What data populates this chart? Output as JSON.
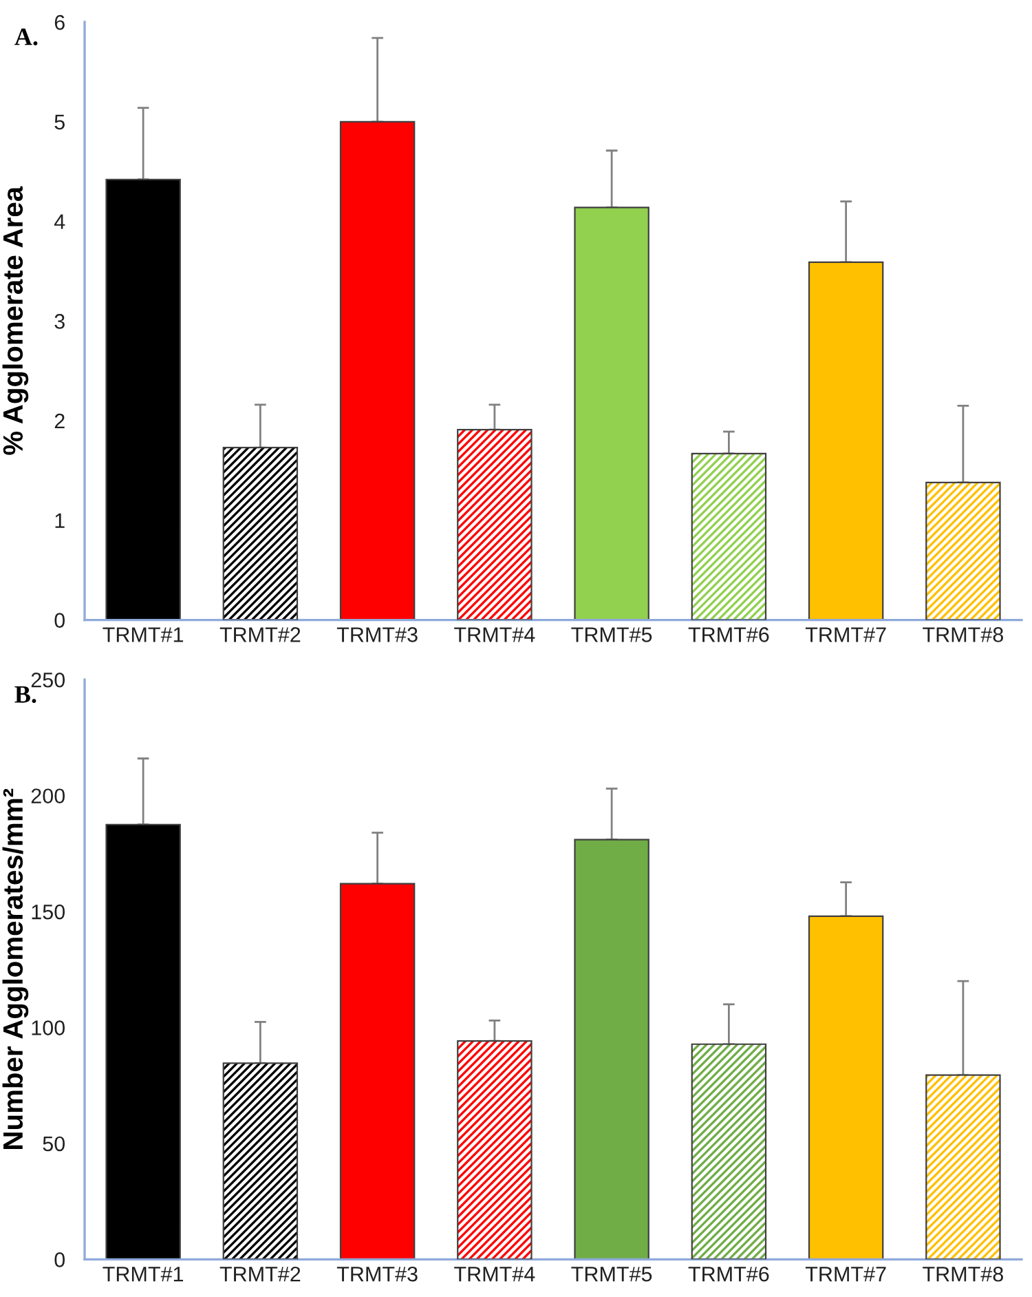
{
  "chart_data": [
    {
      "type": "bar",
      "title": "A.",
      "ylabel": "% Agglomerate Area",
      "categories": [
        "TRMT#1",
        "TRMT#2",
        "TRMT#3",
        "TRMT#4",
        "TRMT#5",
        "TRMT#6",
        "TRMT#7",
        "TRMT#8"
      ],
      "values": [
        4.42,
        1.73,
        5.0,
        1.91,
        4.14,
        1.67,
        3.59,
        1.38
      ],
      "errors": [
        [
          4.42,
          5.14
        ],
        [
          1.73,
          2.16
        ],
        [
          5.0,
          5.84
        ],
        [
          1.91,
          2.16
        ],
        [
          4.14,
          4.71
        ],
        [
          1.67,
          1.89
        ],
        [
          3.59,
          4.2
        ],
        [
          1.38,
          2.15
        ]
      ],
      "colors": [
        "#000000",
        "#000000",
        "#ff0000",
        "#ff0000",
        "#92d050",
        "#92d050",
        "#ffc000",
        "#ffc000"
      ],
      "ylim": [
        0,
        6
      ],
      "yticks": [
        0,
        1,
        2,
        3,
        4,
        5,
        6
      ],
      "grid": false,
      "legend": false
    },
    {
      "type": "bar",
      "title": "B.",
      "ylabel": "Number Agglomerates/mm²",
      "categories": [
        "TRMT#1",
        "TRMT#2",
        "TRMT#3",
        "TRMT#4",
        "TRMT#5",
        "TRMT#6",
        "TRMT#7",
        "TRMT#8"
      ],
      "values": [
        187.5,
        84.6,
        162,
        94.2,
        181,
        92.8,
        148,
        79.5
      ],
      "errors": [
        [
          187.5,
          216
        ],
        [
          84.6,
          102.4
        ],
        [
          162,
          184
        ],
        [
          94.2,
          103
        ],
        [
          181,
          203
        ],
        [
          92.8,
          110
        ],
        [
          148,
          162.6
        ],
        [
          79.5,
          120
        ]
      ],
      "colors": [
        "#000000",
        "#000000",
        "#ff0000",
        "#ff0000",
        "#70ad47",
        "#70ad47",
        "#ffc000",
        "#ffc000"
      ],
      "ylim": [
        0,
        250
      ],
      "yticks": [
        0,
        50,
        100,
        150,
        200,
        250
      ],
      "grid": false,
      "legend": false
    }
  ]
}
